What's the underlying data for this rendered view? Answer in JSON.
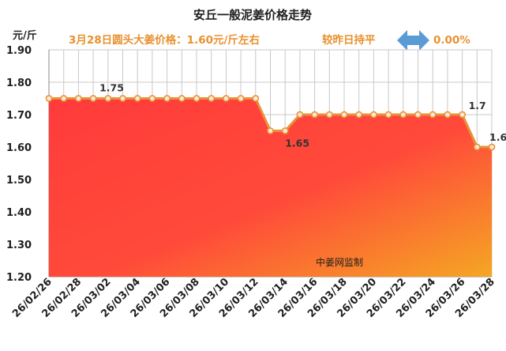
{
  "chart_data": {
    "type": "area",
    "title": "安丘一般泥姜价格走势",
    "subtitle": {
      "price_text": "3月28日圆头大姜价格：1.60元/斤左右",
      "compare_text": "较昨日持平",
      "change_text": "0.00%"
    },
    "ylabel": "元/斤",
    "ylim": [
      1.2,
      1.9
    ],
    "yticks": [
      "1.90",
      "1.80",
      "1.70",
      "1.60",
      "1.50",
      "1.40",
      "1.30",
      "1.20"
    ],
    "x": [
      "26/02/26",
      "26/02/27",
      "26/02/28",
      "26/03/01",
      "26/03/02",
      "26/03/03",
      "26/03/04",
      "26/03/05",
      "26/03/06",
      "26/03/07",
      "26/03/08",
      "26/03/09",
      "26/03/10",
      "26/03/11",
      "26/03/12",
      "26/03/13",
      "26/03/14",
      "26/03/15",
      "26/03/16",
      "26/03/17",
      "26/03/18",
      "26/03/19",
      "26/03/20",
      "26/03/21",
      "26/03/22",
      "26/03/23",
      "26/03/24",
      "26/03/25",
      "26/03/26",
      "26/03/27",
      "26/03/28"
    ],
    "xtick_labels": [
      "26/02/26",
      "26/02/28",
      "26/03/02",
      "26/03/04",
      "26/03/06",
      "26/03/08",
      "26/03/10",
      "26/03/12",
      "26/03/14",
      "26/03/16",
      "26/03/18",
      "26/03/20",
      "26/03/22",
      "26/03/24",
      "26/03/26",
      "26/03/28"
    ],
    "values": [
      1.75,
      1.75,
      1.75,
      1.75,
      1.75,
      1.75,
      1.75,
      1.75,
      1.75,
      1.75,
      1.75,
      1.75,
      1.75,
      1.75,
      1.75,
      1.65,
      1.65,
      1.7,
      1.7,
      1.7,
      1.7,
      1.7,
      1.7,
      1.7,
      1.7,
      1.7,
      1.7,
      1.7,
      1.7,
      1.6,
      1.6
    ],
    "data_labels": [
      {
        "index": 3,
        "text": "1.75"
      },
      {
        "index": 16,
        "text": "1.65"
      },
      {
        "index": 28,
        "text": "1.7"
      },
      {
        "index": 30,
        "text": "1.6"
      }
    ],
    "watermark": "中姜网监制",
    "grid": true,
    "colors": {
      "line": "#e8913a",
      "marker_fill": "#fde9d4",
      "area_top": "#ff3b3b",
      "area_bottom": "#f5a623",
      "subtitle_text": "#e8912f",
      "change_arrow": "#5b9bd5",
      "grid": "#c8c8c8"
    }
  }
}
